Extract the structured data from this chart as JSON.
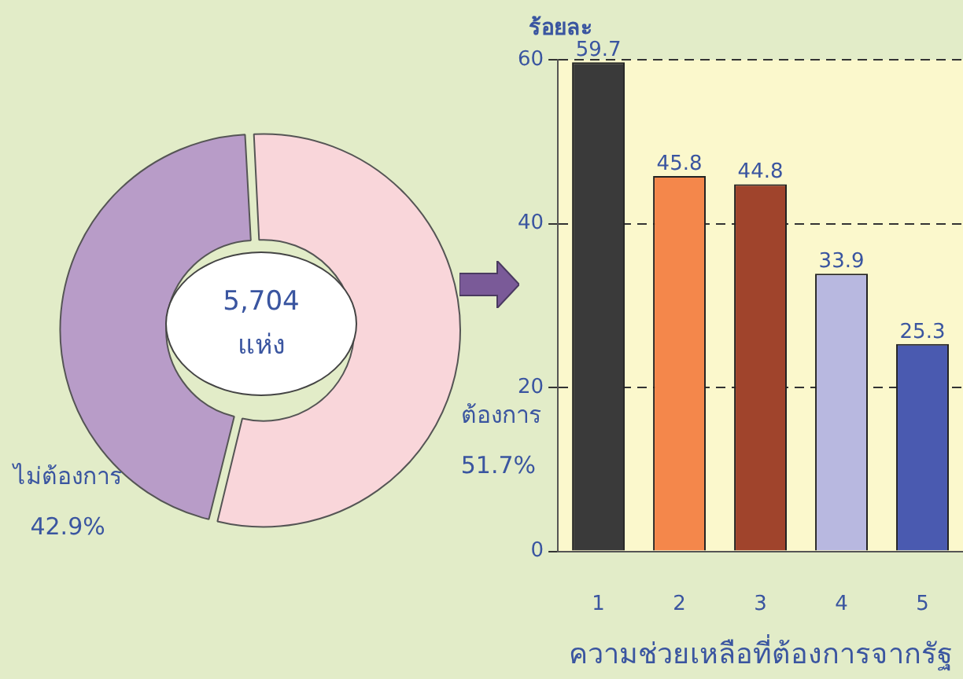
{
  "chart_data": [
    {
      "type": "donut",
      "categories": [
        "ต้องการ",
        "ไม่ต้องการ"
      ],
      "values": [
        51.7,
        42.9
      ],
      "colors": [
        "#f9d6da",
        "#b89cc8"
      ],
      "value_labels": [
        "51.7%",
        "42.9%"
      ],
      "annotations": [
        "5,704\nแห่ง"
      ],
      "legend": false
    },
    {
      "type": "bar",
      "categories": [
        "1",
        "2",
        "3",
        "4",
        "5"
      ],
      "values": [
        59.7,
        45.8,
        44.8,
        33.9,
        25.3
      ],
      "colors": [
        "#3a3a3a",
        "#f4874b",
        "#a0442c",
        "#b8b8e0",
        "#4a5ab0"
      ],
      "ylabel": "ร้อยละ",
      "xlabel": "ความช่วยเหลือที่ต้องการจากรัฐ",
      "ylim": [
        0,
        60
      ],
      "yticks": [
        0,
        20,
        40,
        60
      ],
      "grid": "y",
      "data_labels": true,
      "legend": false
    }
  ]
}
